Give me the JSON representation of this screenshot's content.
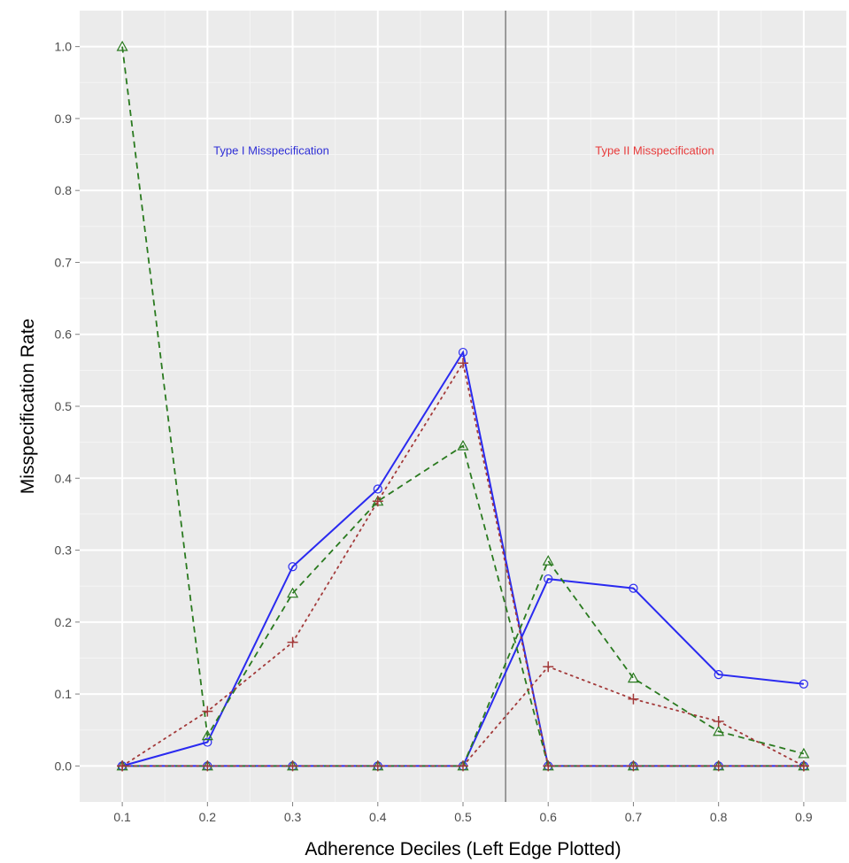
{
  "chart_data": {
    "type": "line",
    "title": "",
    "xlabel": "Adherence Deciles (Left Edge Plotted)",
    "ylabel": "Misspecification Rate",
    "x": [
      0.1,
      0.2,
      0.3,
      0.4,
      0.5,
      0.6,
      0.7,
      0.8,
      0.9
    ],
    "xlim": [
      0.05,
      0.95
    ],
    "ylim": [
      -0.05,
      1.05
    ],
    "x_ticks": [
      "0.1",
      "0.2",
      "0.3",
      "0.4",
      "0.5",
      "0.6",
      "0.7",
      "0.8",
      "0.9"
    ],
    "y_ticks": [
      "0.0",
      "0.1",
      "0.2",
      "0.3",
      "0.4",
      "0.5",
      "0.6",
      "0.7",
      "0.8",
      "0.9",
      "1.0"
    ],
    "grid": true,
    "background": "#ebebeb",
    "vertical_line": {
      "x": 0.55,
      "color": "#7f7f7f"
    },
    "annotations": [
      {
        "text": "Type I Misspecification",
        "x": 0.275,
        "y": 0.85,
        "color": "#2f2fd6"
      },
      {
        "text": "Type II Misspecification",
        "x": 0.725,
        "y": 0.85,
        "color": "#e83a3a"
      }
    ],
    "series": [
      {
        "style": "solid",
        "marker": "circle",
        "color": "#2a2af0",
        "lines": [
          [
            0,
            0.033,
            0.277,
            0.385,
            0.575,
            0,
            0,
            0,
            0
          ],
          [
            0,
            0,
            0,
            0,
            0,
            0.26,
            0.247,
            0.127,
            0.114
          ]
        ]
      },
      {
        "style": "dashed",
        "marker": "triangle",
        "color": "#2a7a1f",
        "lines": [
          [
            1.0,
            0.042,
            0.24,
            0.368,
            0.445,
            0,
            0,
            0,
            0
          ],
          [
            0,
            0,
            0,
            0,
            0,
            0.285,
            0.122,
            0.048,
            0.017
          ]
        ]
      },
      {
        "style": "dotted",
        "marker": "plus",
        "color": "#a33a3a",
        "lines": [
          [
            0,
            0.076,
            0.172,
            0.368,
            0.56,
            0,
            0,
            0,
            0
          ],
          [
            0,
            0,
            0,
            0,
            0,
            0.138,
            0.093,
            0.062,
            0
          ]
        ]
      }
    ]
  }
}
